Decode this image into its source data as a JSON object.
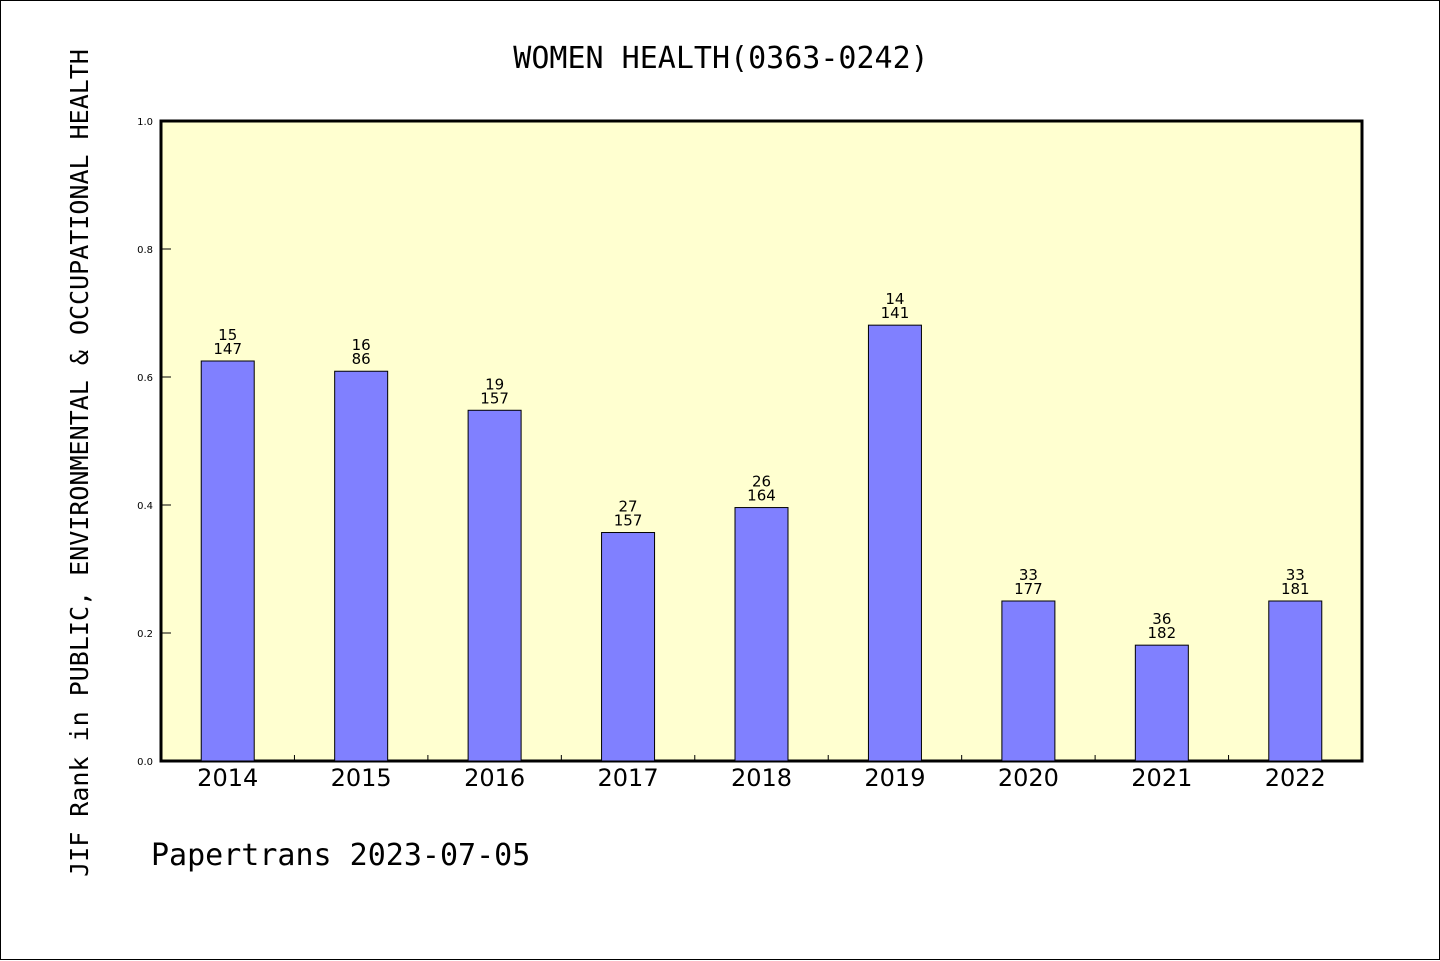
{
  "chart_data": {
    "type": "bar",
    "title": "WOMEN HEALTH(0363-0242)",
    "ylabel": "JIF Rank in PUBLIC, ENVIRONMENTAL & OCCUPATIONAL HEALTH",
    "xlabel": "",
    "ylim": [
      0,
      1.0
    ],
    "yticks": [
      "0.0",
      "0.2",
      "0.4",
      "0.6",
      "0.8",
      "1.0"
    ],
    "categories": [
      "2014",
      "2015",
      "2016",
      "2017",
      "2018",
      "2019",
      "2020",
      "2021",
      "2022"
    ],
    "values": [
      0.625,
      0.609,
      0.548,
      0.357,
      0.396,
      0.681,
      0.25,
      0.181,
      0.25
    ],
    "rank_labels": [
      "15",
      "16",
      "19",
      "27",
      "26",
      "14",
      "33",
      "36",
      "33"
    ],
    "total_labels": [
      "147",
      "86",
      "157",
      "157",
      "164",
      "141",
      "177",
      "182",
      "181"
    ],
    "grid": false,
    "colors": {
      "bar": "#8080ff",
      "plot_background": "#ffffd0",
      "bar_edge": "#000000"
    }
  },
  "footer": "Papertrans 2023-07-05"
}
